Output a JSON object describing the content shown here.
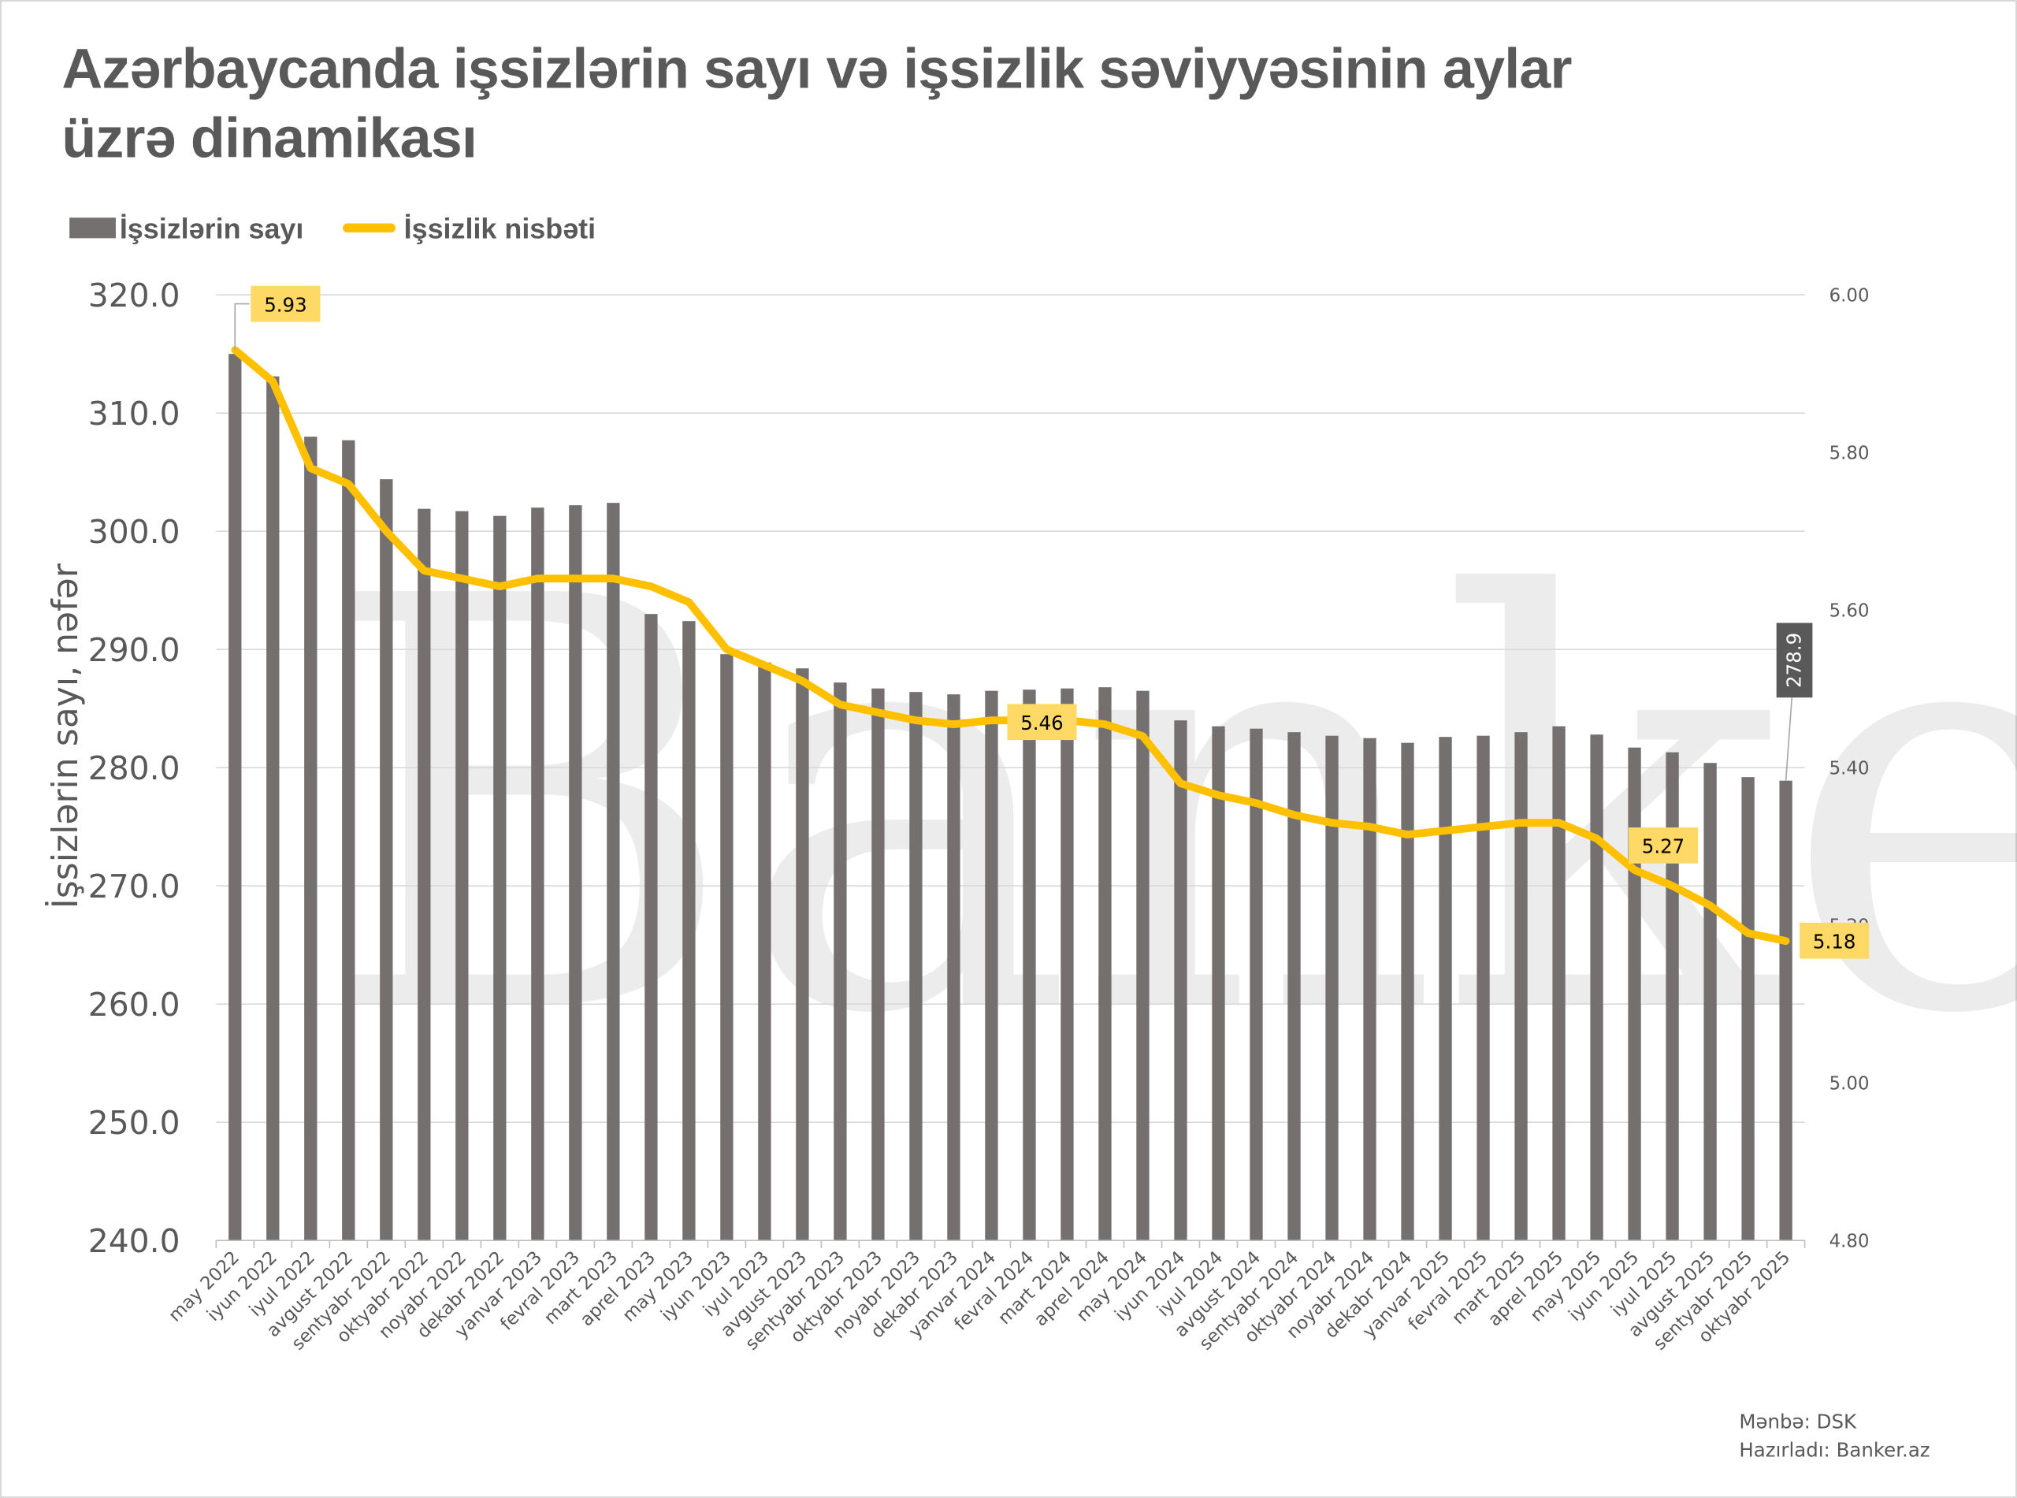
{
  "title_line1": "Azərbaycanda işsizlərin sayı və işsizlik səviyyəsinin aylar",
  "title_line2": "üzrə dinamikası",
  "watermark": "Banker.az",
  "source": "Mənbə: DSK",
  "prepared_by": "Hazırladı: Banker.az",
  "colors": {
    "bars": "#757070",
    "line": "#FFC000",
    "label_bg": "#FFD966",
    "bar_label_bg": "#595959",
    "text": "#595959"
  },
  "chart_data": {
    "type": "bar+line",
    "legend_position": "top-left",
    "grid": true,
    "ylabel": "İşsizlərin sayı, nəfər",
    "ylim": [
      240,
      320
    ],
    "y_ticks": [
      "240.0",
      "250.0",
      "260.0",
      "270.0",
      "280.0",
      "290.0",
      "300.0",
      "310.0",
      "320.0"
    ],
    "y2lim": [
      4.8,
      6.0
    ],
    "y2_ticks": [
      "4.80",
      "5.00",
      "5.20",
      "5.40",
      "5.60",
      "5.80",
      "6.00"
    ],
    "categories": [
      "may 2022",
      "iyun 2022",
      "iyul 2022",
      "avgust 2022",
      "sentyabr 2022",
      "oktyabr 2022",
      "noyabr 2022",
      "dekabr 2022",
      "yanvar 2023",
      "fevral 2023",
      "mart 2023",
      "aprel 2023",
      "may 2023",
      "iyun 2023",
      "iyul 2023",
      "avgust 2023",
      "sentyabr 2023",
      "oktyabr 2023",
      "noyabr 2023",
      "dekabr 2023",
      "yanvar 2024",
      "fevral 2024",
      "mart 2024",
      "aprel 2024",
      "may 2024",
      "iyun 2024",
      "iyul 2024",
      "avgust 2024",
      "sentyabr 2024",
      "oktyabr 2024",
      "noyabr 2024",
      "dekabr 2024",
      "yanvar 2025",
      "fevral 2025",
      "mart 2025",
      "aprel 2025",
      "may 2025",
      "iyun 2025",
      "iyul 2025",
      "avgust 2025",
      "sentyabr 2025",
      "oktyabr 2025"
    ],
    "series": [
      {
        "name": "İşsizlərin sayı",
        "type": "bar",
        "axis": "left",
        "values": [
          315.0,
          313.1,
          308.0,
          307.7,
          304.4,
          301.9,
          301.7,
          301.3,
          302.0,
          302.2,
          302.4,
          293.0,
          292.4,
          289.6,
          288.9,
          288.4,
          287.2,
          286.7,
          286.4,
          286.2,
          286.5,
          286.6,
          286.7,
          286.8,
          286.5,
          284.0,
          283.5,
          283.3,
          283.0,
          282.7,
          282.5,
          282.1,
          282.6,
          282.7,
          283.0,
          283.5,
          282.8,
          281.7,
          281.3,
          280.4,
          279.2,
          278.9
        ],
        "data_labels": [
          {
            "index": 41,
            "text": "278.9"
          }
        ]
      },
      {
        "name": "İşsizlik nisbəti",
        "type": "line",
        "axis": "right",
        "values": [
          5.93,
          5.89,
          5.78,
          5.76,
          5.7,
          5.65,
          5.64,
          5.63,
          5.64,
          5.64,
          5.64,
          5.63,
          5.61,
          5.55,
          5.53,
          5.51,
          5.48,
          5.47,
          5.46,
          5.455,
          5.46,
          5.46,
          5.46,
          5.455,
          5.44,
          5.38,
          5.365,
          5.355,
          5.34,
          5.33,
          5.325,
          5.315,
          5.32,
          5.325,
          5.33,
          5.33,
          5.31,
          5.27,
          5.25,
          5.225,
          5.19,
          5.18
        ],
        "data_labels": [
          {
            "index": 0,
            "text": "5.93"
          },
          {
            "index": 21,
            "text": "5.46"
          },
          {
            "index": 37,
            "text": "5.27"
          },
          {
            "index": 41,
            "text": "5.18"
          }
        ]
      }
    ]
  }
}
